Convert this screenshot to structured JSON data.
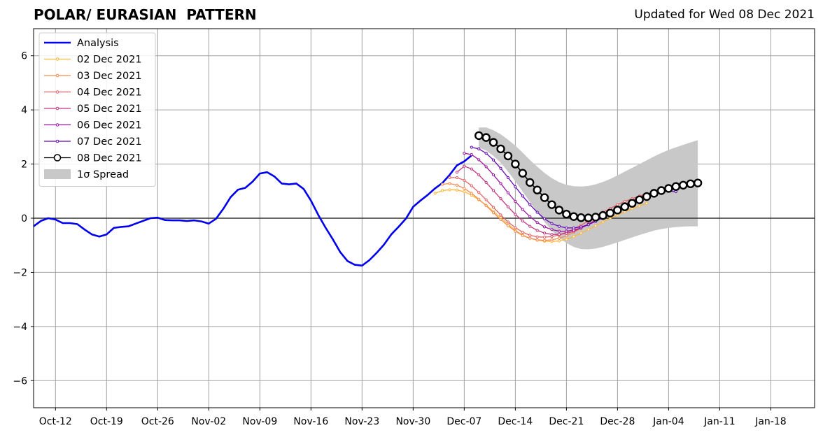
{
  "title": "POLAR/ EURASIAN  PATTERN",
  "subtitle": "Updated for Wed 08 Dec 2021",
  "chart_data": {
    "type": "line",
    "ylim": [
      -7,
      7
    ],
    "yticks": [
      -6,
      -4,
      -2,
      0,
      2,
      4,
      6
    ],
    "ytick_labels": [
      "−6",
      "−4",
      "−2",
      "0",
      "2",
      "4",
      "6"
    ],
    "xlim": [
      "2021-10-09",
      "2022-01-24"
    ],
    "xticks": [
      "2021-10-12",
      "2021-10-19",
      "2021-10-26",
      "2021-11-02",
      "2021-11-09",
      "2021-11-16",
      "2021-11-23",
      "2021-11-30",
      "2021-12-07",
      "2021-12-14",
      "2021-12-21",
      "2021-12-28",
      "2022-01-04",
      "2022-01-11",
      "2022-01-18"
    ],
    "xtick_labels": [
      "Oct-12",
      "Oct-19",
      "Oct-26",
      "Nov-02",
      "Nov-09",
      "Nov-16",
      "Nov-23",
      "Nov-30",
      "Dec-07",
      "Dec-14",
      "Dec-21",
      "Dec-28",
      "Jan-04",
      "Jan-11",
      "Jan-18"
    ],
    "grid": true,
    "legend": "top-left",
    "colors": {
      "analysis": "#0000ee",
      "d02": "#fdb73a",
      "d03": "#f48a4f",
      "d04": "#e16266",
      "d05": "#c2357f",
      "d06": "#9b14a0",
      "d07": "#6409b8",
      "d08": "#000000",
      "spread": "#c8c8c8"
    },
    "analysis": {
      "name": "Analysis",
      "x": [
        "2021-10-09",
        "2021-10-10",
        "2021-10-11",
        "2021-10-12",
        "2021-10-13",
        "2021-10-14",
        "2021-10-15",
        "2021-10-16",
        "2021-10-17",
        "2021-10-18",
        "2021-10-19",
        "2021-10-20",
        "2021-10-21",
        "2021-10-22",
        "2021-10-23",
        "2021-10-24",
        "2021-10-25",
        "2021-10-26",
        "2021-10-27",
        "2021-10-28",
        "2021-10-29",
        "2021-10-30",
        "2021-10-31",
        "2021-11-01",
        "2021-11-02",
        "2021-11-03",
        "2021-11-04",
        "2021-11-05",
        "2021-11-06",
        "2021-11-07",
        "2021-11-08",
        "2021-11-09",
        "2021-11-10",
        "2021-11-11",
        "2021-11-12",
        "2021-11-13",
        "2021-11-14",
        "2021-11-15",
        "2021-11-16",
        "2021-11-17",
        "2021-11-18",
        "2021-11-19",
        "2021-11-20",
        "2021-11-21",
        "2021-11-22",
        "2021-11-23",
        "2021-11-24",
        "2021-11-25",
        "2021-11-26",
        "2021-11-27",
        "2021-11-28",
        "2021-11-29",
        "2021-11-30",
        "2021-12-01",
        "2021-12-02",
        "2021-12-03",
        "2021-12-04",
        "2021-12-05",
        "2021-12-06",
        "2021-12-07",
        "2021-12-08"
      ],
      "values": [
        -0.3,
        -0.1,
        0.0,
        -0.05,
        -0.18,
        -0.18,
        -0.22,
        -0.42,
        -0.6,
        -0.68,
        -0.6,
        -0.36,
        -0.32,
        -0.3,
        -0.2,
        -0.1,
        0.0,
        0.02,
        -0.07,
        -0.08,
        -0.08,
        -0.1,
        -0.08,
        -0.12,
        -0.2,
        -0.02,
        0.35,
        0.78,
        1.05,
        1.12,
        1.35,
        1.65,
        1.7,
        1.54,
        1.28,
        1.25,
        1.28,
        1.08,
        0.65,
        0.12,
        -0.35,
        -0.78,
        -1.25,
        -1.58,
        -1.72,
        -1.75,
        -1.55,
        -1.28,
        -0.98,
        -0.6,
        -0.32,
        -0.02,
        0.42,
        0.65,
        0.86,
        1.1,
        1.3,
        1.6,
        1.95,
        2.1,
        2.32
      ]
    },
    "forecasts": [
      {
        "name": "02 Dec 2021",
        "start": "2021-12-03",
        "values": [
          0.92,
          1.02,
          1.05,
          1.04,
          0.98,
          0.85,
          0.68,
          0.48,
          0.25,
          0.02,
          -0.22,
          -0.45,
          -0.62,
          -0.74,
          -0.81,
          -0.85,
          -0.86,
          -0.84,
          -0.78,
          -0.68,
          -0.55,
          -0.42,
          -0.28,
          -0.14,
          0.0,
          0.12,
          0.24,
          0.35,
          0.45,
          0.55
        ]
      },
      {
        "name": "03 Dec 2021",
        "start": "2021-12-04",
        "values": [
          1.25,
          1.28,
          1.22,
          1.1,
          0.92,
          0.7,
          0.46,
          0.2,
          -0.05,
          -0.28,
          -0.48,
          -0.64,
          -0.74,
          -0.8,
          -0.82,
          -0.8,
          -0.74,
          -0.65,
          -0.52,
          -0.38,
          -0.22,
          -0.06,
          0.1,
          0.24,
          0.38,
          0.5,
          0.6,
          0.7,
          0.8
        ]
      },
      {
        "name": "04 Dec 2021",
        "start": "2021-12-05",
        "values": [
          1.5,
          1.5,
          1.4,
          1.2,
          0.95,
          0.68,
          0.4,
          0.12,
          -0.14,
          -0.35,
          -0.52,
          -0.63,
          -0.69,
          -0.7,
          -0.68,
          -0.62,
          -0.52,
          -0.4,
          -0.26,
          -0.1,
          0.06,
          0.22,
          0.36,
          0.5,
          0.62,
          0.72,
          0.82,
          0.9
        ]
      },
      {
        "name": "05 Dec 2021",
        "start": "2021-12-06",
        "values": [
          1.7,
          1.92,
          1.82,
          1.6,
          1.32,
          1.02,
          0.72,
          0.42,
          0.14,
          -0.1,
          -0.3,
          -0.45,
          -0.55,
          -0.6,
          -0.6,
          -0.56,
          -0.48,
          -0.36,
          -0.22,
          -0.07,
          0.08,
          0.24,
          0.38,
          0.52,
          0.64,
          0.76,
          0.86,
          0.95
        ]
      },
      {
        "name": "06 Dec 2021",
        "start": "2021-12-07",
        "values": [
          2.4,
          2.35,
          2.16,
          1.9,
          1.6,
          1.28,
          0.94,
          0.62,
          0.32,
          0.06,
          -0.16,
          -0.32,
          -0.42,
          -0.48,
          -0.48,
          -0.44,
          -0.36,
          -0.24,
          -0.1,
          0.05,
          0.2,
          0.36,
          0.5,
          0.64,
          0.76,
          0.88,
          0.98,
          1.05
        ]
      },
      {
        "name": "07 Dec 2021",
        "start": "2021-12-08",
        "values": [
          2.62,
          2.56,
          2.4,
          2.15,
          1.84,
          1.5,
          1.16,
          0.82,
          0.5,
          0.22,
          -0.02,
          -0.2,
          -0.3,
          -0.36,
          -0.36,
          -0.32,
          -0.24,
          -0.12,
          0.02,
          0.17,
          0.32,
          0.47,
          0.6,
          0.72,
          0.84,
          0.93,
          0.98,
          1.0,
          0.98
        ]
      },
      {
        "name": "08 Dec 2021",
        "start": "2021-12-09",
        "values": [
          3.05,
          2.98,
          2.8,
          2.56,
          2.3,
          2.0,
          1.66,
          1.32,
          1.04,
          0.76,
          0.5,
          0.3,
          0.15,
          0.06,
          0.02,
          0.01,
          0.04,
          0.1,
          0.19,
          0.3,
          0.42,
          0.55,
          0.68,
          0.8,
          0.92,
          1.02,
          1.1,
          1.17,
          1.22,
          1.27,
          1.3
        ]
      }
    ],
    "spread": {
      "name": "1σ Spread",
      "start": "2021-12-09",
      "upper": [
        3.35,
        3.35,
        3.25,
        3.1,
        2.9,
        2.68,
        2.42,
        2.15,
        1.9,
        1.67,
        1.48,
        1.33,
        1.23,
        1.18,
        1.17,
        1.19,
        1.25,
        1.34,
        1.45,
        1.58,
        1.72,
        1.86,
        2.0,
        2.14,
        2.28,
        2.41,
        2.52,
        2.62,
        2.71,
        2.8,
        2.88
      ],
      "lower": [
        2.6,
        2.5,
        2.3,
        2.05,
        1.72,
        1.36,
        0.98,
        0.6,
        0.22,
        -0.14,
        -0.46,
        -0.72,
        -0.92,
        -1.06,
        -1.14,
        -1.15,
        -1.12,
        -1.06,
        -0.98,
        -0.89,
        -0.8,
        -0.71,
        -0.62,
        -0.54,
        -0.46,
        -0.4,
        -0.36,
        -0.33,
        -0.31,
        -0.3,
        -0.3
      ]
    }
  }
}
